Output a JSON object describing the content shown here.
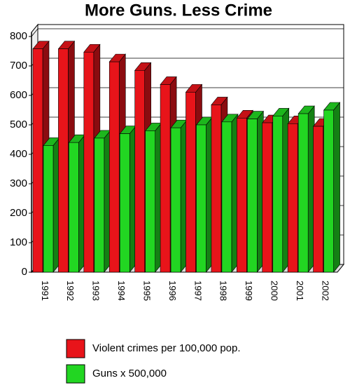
{
  "chart_data": {
    "type": "bar3d",
    "title": "More Guns. Less Crime",
    "categories": [
      "1991",
      "1992",
      "1993",
      "1994",
      "1995",
      "1996",
      "1997",
      "1998",
      "1999",
      "2000",
      "2001",
      "2002"
    ],
    "series": [
      {
        "name": "Violent crimes per 100,000 pop.",
        "color": "#e8141a",
        "values": [
          758,
          758,
          747,
          714,
          685,
          637,
          611,
          568,
          523,
          507,
          504,
          495
        ]
      },
      {
        "name": "Guns x 500,000",
        "color": "#22d622",
        "values": [
          430,
          440,
          455,
          470,
          480,
          490,
          500,
          510,
          520,
          530,
          538,
          550
        ]
      }
    ],
    "ylim": [
      0,
      800
    ],
    "yticks": [
      0,
      100,
      200,
      300,
      400,
      500,
      600,
      700,
      800
    ],
    "grid": true
  }
}
